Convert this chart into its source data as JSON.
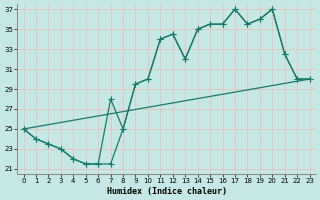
{
  "title": "",
  "xlabel": "Humidex (Indice chaleur)",
  "ylabel": "",
  "bg_color": "#c5e8e4",
  "grid_color": "#e8c5c5",
  "line_color": "#1a7a6a",
  "xlim": [
    -0.5,
    23.5
  ],
  "ylim": [
    20.5,
    37.5
  ],
  "xticks": [
    0,
    1,
    2,
    3,
    4,
    5,
    6,
    7,
    8,
    9,
    10,
    11,
    12,
    13,
    14,
    15,
    16,
    17,
    18,
    19,
    20,
    21,
    22,
    23
  ],
  "yticks": [
    21,
    23,
    25,
    27,
    29,
    31,
    33,
    35,
    37
  ],
  "line1_x": [
    0,
    1,
    2,
    3,
    4,
    5,
    6,
    7,
    8,
    9,
    10,
    11,
    12,
    13,
    14,
    15,
    16,
    17,
    18,
    19,
    20,
    21,
    22,
    23
  ],
  "line1_y": [
    25,
    24,
    23.5,
    23,
    22,
    21.5,
    21.5,
    28,
    25,
    29.5,
    30,
    34,
    34.5,
    32,
    35,
    35.5,
    35.5,
    37,
    35.5,
    36,
    37,
    32.5,
    30,
    30
  ],
  "line2_x": [
    0,
    1,
    2,
    3,
    4,
    5,
    6,
    7,
    8,
    9,
    10,
    11,
    12,
    13,
    14,
    15,
    16,
    17,
    18,
    19,
    20,
    21,
    22,
    23
  ],
  "line2_y": [
    25,
    24,
    23.5,
    23,
    22,
    21.5,
    21.5,
    21.5,
    25,
    29.5,
    30,
    34,
    34.5,
    32,
    35,
    35.5,
    35.5,
    37,
    35.5,
    36,
    37,
    32.5,
    30,
    30
  ],
  "line3_x": [
    0,
    23
  ],
  "line3_y": [
    25,
    30
  ],
  "marker_x1": [
    0,
    1,
    2,
    3,
    4,
    5,
    6,
    7,
    8,
    9,
    10,
    11,
    12,
    13,
    14,
    15,
    16,
    17,
    18,
    19,
    20,
    21,
    22,
    23
  ],
  "marker_y1": [
    25,
    24,
    23.5,
    23,
    22,
    21.5,
    21.5,
    28,
    25,
    29.5,
    30,
    34,
    34.5,
    32,
    35,
    35.5,
    35.5,
    37,
    35.5,
    36,
    37,
    32.5,
    30,
    30
  ],
  "marker_x2": [
    0,
    1,
    2,
    3,
    4,
    5,
    6,
    7,
    8,
    9,
    10,
    11,
    12,
    13,
    14,
    15,
    16,
    17,
    18,
    19,
    20,
    21,
    22,
    23
  ],
  "marker_y2": [
    25,
    24,
    23.5,
    23,
    22,
    21.5,
    21.5,
    21.5,
    25,
    29.5,
    30,
    34,
    34.5,
    32,
    35,
    35.5,
    35.5,
    37,
    35.5,
    36,
    37,
    32.5,
    30,
    30
  ]
}
